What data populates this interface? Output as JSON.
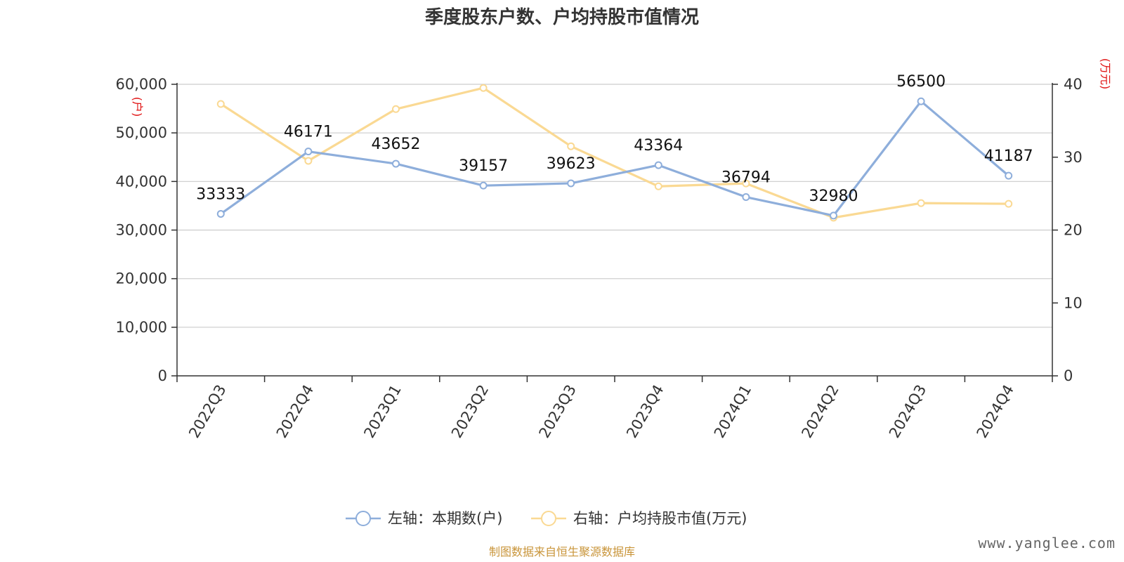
{
  "chart_data": {
    "type": "line",
    "title": "季度股东户数、户均持股市值情况",
    "categories": [
      "2022Q3",
      "2022Q4",
      "2023Q1",
      "2023Q2",
      "2023Q3",
      "2023Q4",
      "2024Q1",
      "2024Q2",
      "2024Q3",
      "2024Q4"
    ],
    "left_axis": {
      "unit": "(户)",
      "ylim": [
        0,
        60000
      ],
      "ticks": [
        "0",
        "10,000",
        "20,000",
        "30,000",
        "40,000",
        "50,000",
        "60,000"
      ],
      "tick_values": [
        0,
        10000,
        20000,
        30000,
        40000,
        50000,
        60000
      ]
    },
    "right_axis": {
      "unit": "(万元)",
      "ylim": [
        0,
        40
      ],
      "ticks": [
        "0",
        "10",
        "20",
        "30",
        "40"
      ],
      "tick_values": [
        0,
        10,
        20,
        30,
        40
      ]
    },
    "series": [
      {
        "name": "左轴：本期数(户)",
        "axis": "left",
        "color": "#8eaedb",
        "values": [
          33333,
          46171,
          43652,
          39157,
          39623,
          43364,
          36794,
          32980,
          56500,
          41187
        ],
        "labels": [
          "33333",
          "46171",
          "43652",
          "39157",
          "39623",
          "43364",
          "36794",
          "32980",
          "56500",
          "41187"
        ]
      },
      {
        "name": "右轴：户均持股市值(万元)",
        "axis": "right",
        "color": "#fad993",
        "values": [
          37.3,
          29.5,
          36.6,
          39.5,
          31.5,
          26.0,
          26.4,
          21.7,
          23.7,
          23.6
        ]
      }
    ],
    "grid": true,
    "legend": "bottom-center"
  },
  "footer": {
    "source": "制图数据来自恒生聚源数据库",
    "watermark": "www.yanglee.com"
  }
}
